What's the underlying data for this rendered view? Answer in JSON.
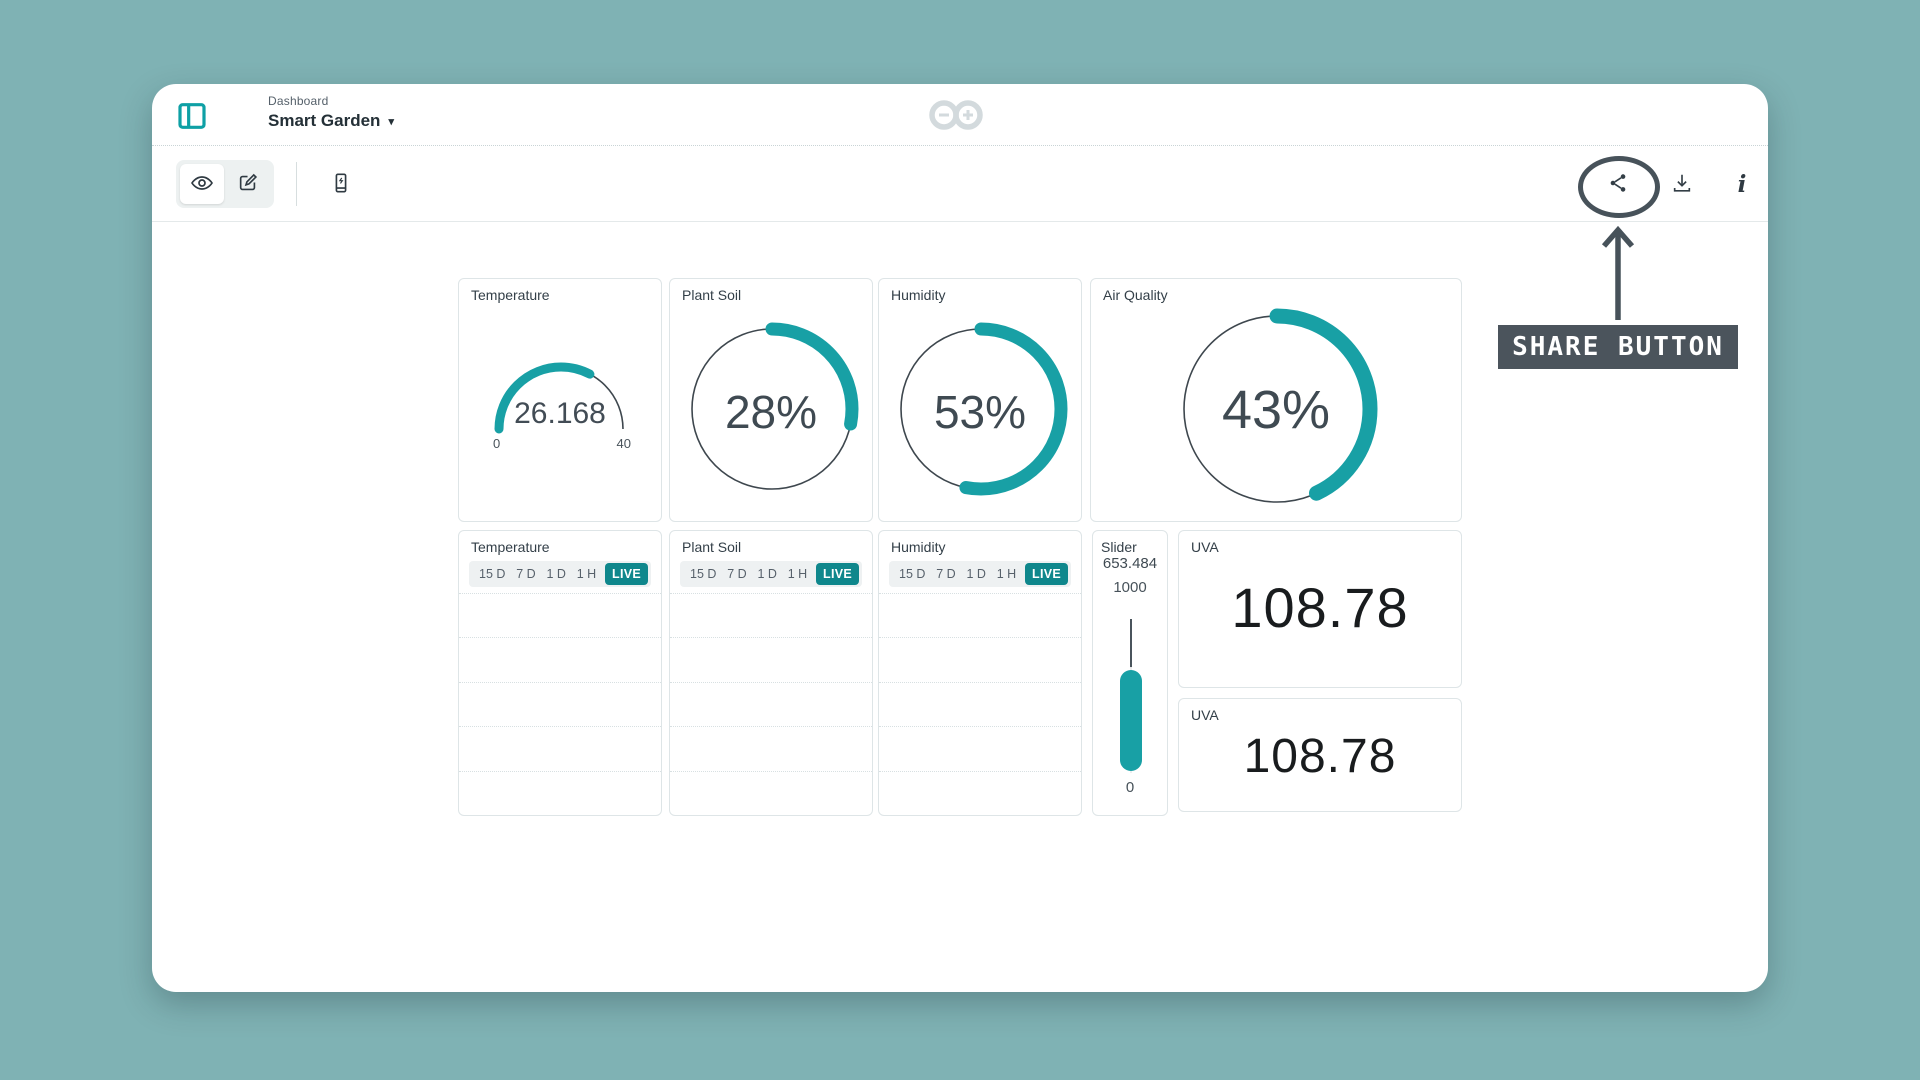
{
  "header": {
    "breadcrumb": "Dashboard",
    "title": "Smart Garden"
  },
  "annotation": {
    "label": "SHARE BUTTON"
  },
  "widgets": {
    "gauge": {
      "title": "Temperature",
      "value": "26.168",
      "min": "0",
      "max": "40",
      "percent": 65.4
    },
    "rings": [
      {
        "title": "Plant Soil",
        "value": "28%",
        "percent": 28
      },
      {
        "title": "Humidity",
        "value": "53%",
        "percent": 53
      },
      {
        "title": "Air Quality",
        "value": "43%",
        "percent": 43
      }
    ],
    "charts": [
      {
        "title": "Temperature"
      },
      {
        "title": "Plant Soil"
      },
      {
        "title": "Humidity"
      }
    ],
    "time_ranges": [
      "15 D",
      "7 D",
      "1 D",
      "1 H"
    ],
    "live_label": "LIVE",
    "slider": {
      "title": "Slider",
      "value": "653.484",
      "max": "1000",
      "min": "0",
      "percent": 65.3
    },
    "values": [
      {
        "title": "UVA",
        "value": "108.78"
      },
      {
        "title": "UVA",
        "value": "108.78"
      }
    ]
  },
  "colors": {
    "background": "#7fb2b4",
    "accent_arc": "#18a0a5",
    "live_badge": "#0f878c",
    "annotation": "#4b545c"
  }
}
